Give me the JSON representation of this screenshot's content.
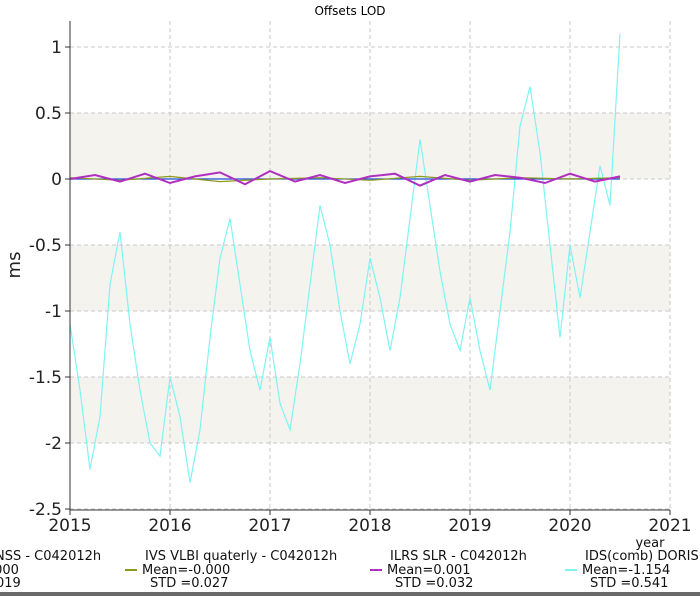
{
  "chart_data": {
    "type": "line",
    "title": "Offsets LOD",
    "xlabel": "year",
    "ylabel": "ms",
    "xlim": [
      2015,
      2021
    ],
    "ylim": [
      -2.5,
      1.2
    ],
    "x_ticks": [
      "2015",
      "2016",
      "2017",
      "2018",
      "2019",
      "2020",
      "2021"
    ],
    "y_ticks": [
      "1",
      "0.5",
      "0",
      "-0.5",
      "-1",
      "-1.5",
      "-2",
      "-2.5"
    ],
    "grid": true,
    "legend_position": "bottom",
    "series": [
      {
        "name": "NSS - C042012h",
        "color": "#1f4fd6",
        "mean_text": ".000",
        "std_text": "019",
        "points": [
          [
            2015.0,
            0.0
          ],
          [
            2015.5,
            0.0
          ],
          [
            2016.0,
            0.0
          ],
          [
            2016.5,
            0.0
          ],
          [
            2017.0,
            0.0
          ],
          [
            2017.5,
            0.0
          ],
          [
            2018.0,
            0.0
          ],
          [
            2018.5,
            0.0
          ],
          [
            2019.0,
            0.0
          ],
          [
            2019.5,
            0.0
          ],
          [
            2020.0,
            0.0
          ],
          [
            2020.5,
            0.0
          ]
        ]
      },
      {
        "name": "IVS VLBI quaterly - C042012h",
        "color": "#8c9a1c",
        "mean_text": "Mean=-0.000",
        "std_text": "STD =0.027",
        "points": [
          [
            2015.0,
            0.01
          ],
          [
            2015.5,
            -0.01
          ],
          [
            2016.0,
            0.02
          ],
          [
            2016.5,
            -0.02
          ],
          [
            2017.0,
            0.0
          ],
          [
            2017.5,
            0.01
          ],
          [
            2018.0,
            -0.01
          ],
          [
            2018.5,
            0.02
          ],
          [
            2019.0,
            -0.01
          ],
          [
            2019.5,
            0.01
          ],
          [
            2020.0,
            0.0
          ],
          [
            2020.5,
            0.01
          ]
        ]
      },
      {
        "name": "ILRS SLR - C042012h",
        "color": "#b02fc0",
        "mean_text": "Mean=0.001",
        "std_text": "STD =0.032",
        "points": [
          [
            2015.0,
            0.0
          ],
          [
            2015.25,
            0.03
          ],
          [
            2015.5,
            -0.02
          ],
          [
            2015.75,
            0.04
          ],
          [
            2016.0,
            -0.03
          ],
          [
            2016.25,
            0.02
          ],
          [
            2016.5,
            0.05
          ],
          [
            2016.75,
            -0.04
          ],
          [
            2017.0,
            0.06
          ],
          [
            2017.25,
            -0.02
          ],
          [
            2017.5,
            0.03
          ],
          [
            2017.75,
            -0.03
          ],
          [
            2018.0,
            0.02
          ],
          [
            2018.25,
            0.04
          ],
          [
            2018.5,
            -0.05
          ],
          [
            2018.75,
            0.03
          ],
          [
            2019.0,
            -0.02
          ],
          [
            2019.25,
            0.03
          ],
          [
            2019.5,
            0.01
          ],
          [
            2019.75,
            -0.03
          ],
          [
            2020.0,
            0.04
          ],
          [
            2020.25,
            -0.02
          ],
          [
            2020.5,
            0.02
          ]
        ]
      },
      {
        "name": "IDS(comb) DORIS -",
        "color": "#7ff4f4",
        "mean_text": "Mean=-1.154",
        "std_text": "STD =0.541",
        "points": [
          [
            2015.0,
            -1.1
          ],
          [
            2015.1,
            -1.6
          ],
          [
            2015.2,
            -2.2
          ],
          [
            2015.3,
            -1.8
          ],
          [
            2015.4,
            -0.8
          ],
          [
            2015.5,
            -0.4
          ],
          [
            2015.6,
            -1.1
          ],
          [
            2015.7,
            -1.6
          ],
          [
            2015.8,
            -2.0
          ],
          [
            2015.9,
            -2.1
          ],
          [
            2016.0,
            -1.5
          ],
          [
            2016.1,
            -1.8
          ],
          [
            2016.2,
            -2.3
          ],
          [
            2016.3,
            -1.9
          ],
          [
            2016.4,
            -1.2
          ],
          [
            2016.5,
            -0.6
          ],
          [
            2016.6,
            -0.3
          ],
          [
            2016.7,
            -0.8
          ],
          [
            2016.8,
            -1.3
          ],
          [
            2016.9,
            -1.6
          ],
          [
            2017.0,
            -1.2
          ],
          [
            2017.1,
            -1.7
          ],
          [
            2017.2,
            -1.9
          ],
          [
            2017.3,
            -1.4
          ],
          [
            2017.4,
            -0.8
          ],
          [
            2017.5,
            -0.2
          ],
          [
            2017.6,
            -0.5
          ],
          [
            2017.7,
            -1.0
          ],
          [
            2017.8,
            -1.4
          ],
          [
            2017.9,
            -1.1
          ],
          [
            2018.0,
            -0.6
          ],
          [
            2018.1,
            -0.9
          ],
          [
            2018.2,
            -1.3
          ],
          [
            2018.3,
            -0.9
          ],
          [
            2018.4,
            -0.3
          ],
          [
            2018.5,
            0.3
          ],
          [
            2018.6,
            -0.2
          ],
          [
            2018.7,
            -0.7
          ],
          [
            2018.8,
            -1.1
          ],
          [
            2018.9,
            -1.3
          ],
          [
            2019.0,
            -0.9
          ],
          [
            2019.1,
            -1.3
          ],
          [
            2019.2,
            -1.6
          ],
          [
            2019.3,
            -1.0
          ],
          [
            2019.4,
            -0.4
          ],
          [
            2019.5,
            0.4
          ],
          [
            2019.6,
            0.7
          ],
          [
            2019.7,
            0.2
          ],
          [
            2019.8,
            -0.5
          ],
          [
            2019.9,
            -1.2
          ],
          [
            2020.0,
            -0.5
          ],
          [
            2020.1,
            -0.9
          ],
          [
            2020.2,
            -0.4
          ],
          [
            2020.3,
            0.1
          ],
          [
            2020.4,
            -0.2
          ],
          [
            2020.5,
            1.1
          ]
        ]
      }
    ]
  }
}
